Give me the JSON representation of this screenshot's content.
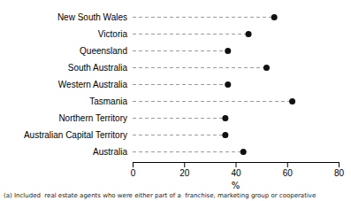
{
  "chart_data": {
    "type": "lollipop",
    "orientation": "horizontal",
    "categories": [
      "Australia",
      "Australian Capital Territory",
      "Northern Territory",
      "Tasmania",
      "Western Australia",
      "South Australia",
      "Queensland",
      "Victoria",
      "New South Wales"
    ],
    "values": [
      43,
      36,
      36,
      62,
      37,
      52,
      37,
      45,
      55
    ],
    "xlim": [
      0,
      80
    ],
    "xticks": [
      0,
      20,
      40,
      60,
      80
    ],
    "xlabel": "%",
    "annotation": "(a) Included  real estate agents who were either part of a  franchise, marketing group or cooperative",
    "color": "#111111",
    "line_style": "dashed",
    "marker": "circle",
    "grid": false
  }
}
